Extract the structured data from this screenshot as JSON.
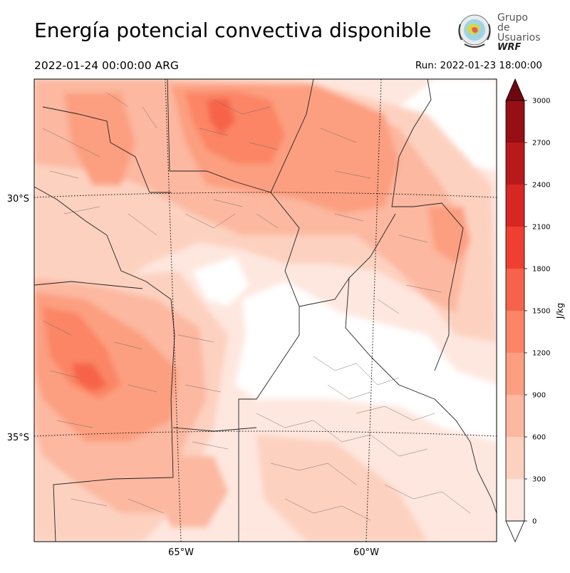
{
  "header": {
    "title": "Energía potencial convectiva disponible",
    "valid_time": "2022-01-24 00:00:00 ARG",
    "run_time": "Run: 2022-01-23 18:00:00"
  },
  "logo": {
    "line1": "Grupo de",
    "line2": "Usuarios",
    "line3": "WRF"
  },
  "map": {
    "lat_labels": [
      "30°S",
      "35°S"
    ],
    "lon_labels": [
      "65°W",
      "60°W"
    ]
  },
  "colorbar": {
    "label": "J/kg",
    "ticks": [
      "0",
      "300",
      "600",
      "900",
      "1200",
      "1500",
      "1800",
      "2100",
      "2400",
      "2700",
      "3000"
    ],
    "colors": [
      "#fee7df",
      "#fdd1c0",
      "#fcb8a0",
      "#fc9f80",
      "#fb8565",
      "#f6634a",
      "#ee3f30",
      "#d72723",
      "#b81a1c",
      "#960f14",
      "#6f0711"
    ]
  }
}
